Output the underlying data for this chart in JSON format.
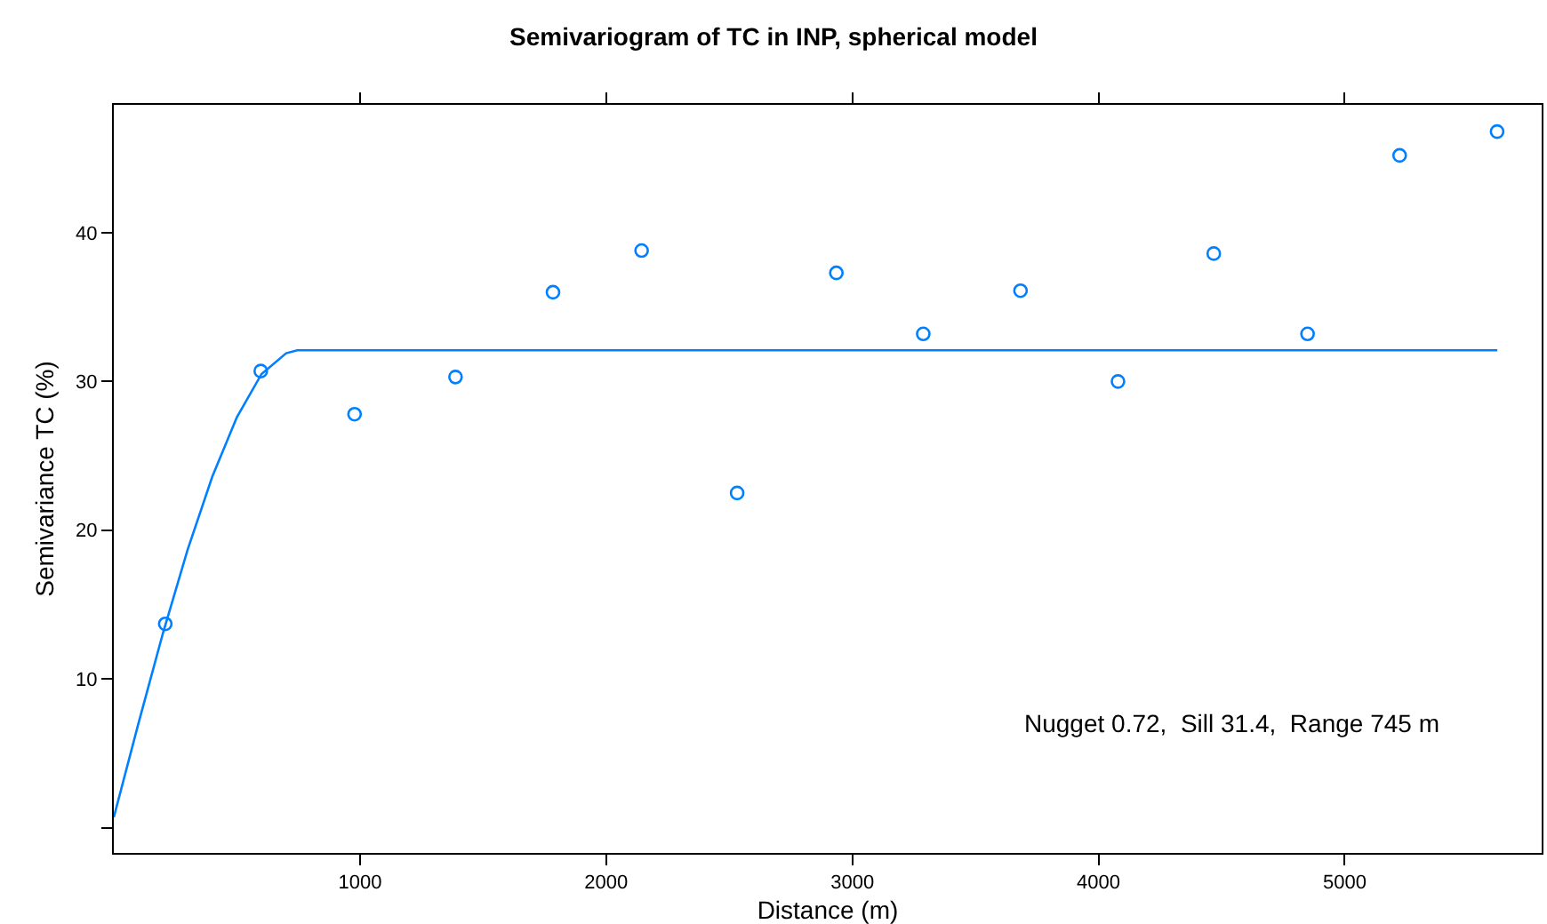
{
  "chart_data": {
    "type": "scatter",
    "title": "Semivariogram of TC in INP, spherical model",
    "xlabel": "Distance (m)",
    "ylabel": "Semivariance TC (%)",
    "xlim": [
      0,
      5800
    ],
    "ylim": [
      -1.7,
      48.6
    ],
    "xticks": [
      1000,
      2000,
      3000,
      4000,
      5000
    ],
    "yticks": [
      {
        "value": 0,
        "label": null
      },
      10,
      20,
      30,
      40
    ],
    "marker": "circle",
    "series": [
      {
        "color": "#0080ff",
        "x": [
          209,
          597,
          978,
          1388,
          1784,
          2144,
          2532,
          2935,
          3288,
          3683,
          4079,
          4468,
          4849,
          5223,
          5619
        ],
        "values": [
          13.7,
          30.7,
          27.8,
          30.3,
          36.0,
          38.8,
          22.5,
          37.3,
          33.2,
          36.1,
          30.0,
          38.6,
          33.2,
          45.2,
          46.8
        ]
      },
      {
        "type": "line",
        "color": "#0080ff",
        "marker": "none",
        "line_style": "solid",
        "x": [
          0,
          100,
          200,
          300,
          400,
          500,
          600,
          700,
          745,
          5620
        ],
        "values": [
          0.7,
          7.0,
          13.1,
          18.7,
          23.6,
          27.6,
          30.5,
          31.9,
          32.1,
          32.1
        ]
      }
    ],
    "annotations": [
      "Nugget 0.72,  Sill 31.4,  Range 745 m"
    ]
  }
}
